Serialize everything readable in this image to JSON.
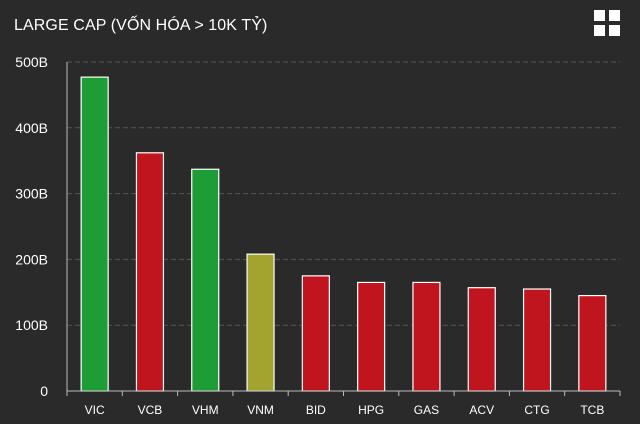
{
  "chart_data": {
    "type": "bar",
    "title": "LARGE CAP (VỐN HÓA > 10K TỶ)",
    "categories": [
      "VIC",
      "VCB",
      "VHM",
      "VNM",
      "BID",
      "HPG",
      "GAS",
      "ACV",
      "CTG",
      "TCB"
    ],
    "values": [
      477,
      362,
      337,
      208,
      175,
      165,
      165,
      157,
      155,
      145
    ],
    "colors": [
      "#1e9c36",
      "#c0151f",
      "#1e9c36",
      "#a3a330",
      "#c0151f",
      "#c0151f",
      "#c0151f",
      "#c0151f",
      "#c0151f",
      "#c0151f"
    ],
    "ylim": [
      0,
      500
    ],
    "yticks": [
      0,
      100,
      200,
      300,
      400,
      500
    ],
    "ytick_labels": [
      "0",
      "100B",
      "200B",
      "300B",
      "400B",
      "500B"
    ],
    "xlabel": "",
    "ylabel": "",
    "grid": true,
    "legend": "none"
  },
  "toolbar": {
    "menu_icon": "grid-menu-icon"
  },
  "style": {
    "background": "#2a2a2a",
    "bar_outline": "#ffffff",
    "grid_color": "#555555",
    "axis_color": "#bbbbbb"
  }
}
